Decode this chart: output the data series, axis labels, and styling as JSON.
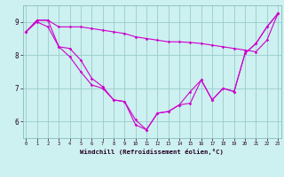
{
  "xlabel": "Windchill (Refroidissement éolien,°C)",
  "background_color": "#cdf0f0",
  "line_color": "#cc00cc",
  "grid_color": "#99cccc",
  "hours": [
    0,
    1,
    2,
    3,
    4,
    5,
    6,
    7,
    8,
    9,
    10,
    11,
    12,
    13,
    14,
    15,
    16,
    17,
    18,
    19,
    20,
    21,
    22,
    23
  ],
  "line1": [
    8.7,
    9.05,
    9.05,
    8.85,
    8.85,
    8.85,
    8.8,
    8.75,
    8.7,
    8.65,
    8.55,
    8.5,
    8.45,
    8.4,
    8.4,
    8.38,
    8.35,
    8.3,
    8.25,
    8.2,
    8.15,
    8.1,
    8.45,
    9.25
  ],
  "line2": [
    8.7,
    9.05,
    9.05,
    8.25,
    8.2,
    7.85,
    7.3,
    7.05,
    6.65,
    6.6,
    5.9,
    5.75,
    6.25,
    6.3,
    6.5,
    6.9,
    7.25,
    6.65,
    7.0,
    6.9,
    8.05,
    8.35,
    8.85,
    9.25
  ],
  "line3": [
    8.7,
    9.0,
    8.85,
    8.25,
    7.95,
    7.5,
    7.1,
    7.0,
    6.65,
    6.6,
    6.05,
    5.75,
    6.25,
    6.3,
    6.5,
    6.55,
    7.25,
    6.65,
    7.0,
    6.9,
    8.05,
    8.35,
    8.85,
    9.25
  ],
  "ylim": [
    5.5,
    9.5
  ],
  "yticks": [
    6,
    7,
    8,
    9
  ],
  "xticks": [
    0,
    1,
    2,
    3,
    4,
    5,
    6,
    7,
    8,
    9,
    10,
    11,
    12,
    13,
    14,
    15,
    16,
    17,
    18,
    19,
    20,
    21,
    22,
    23
  ],
  "xlim": [
    -0.3,
    23.3
  ]
}
